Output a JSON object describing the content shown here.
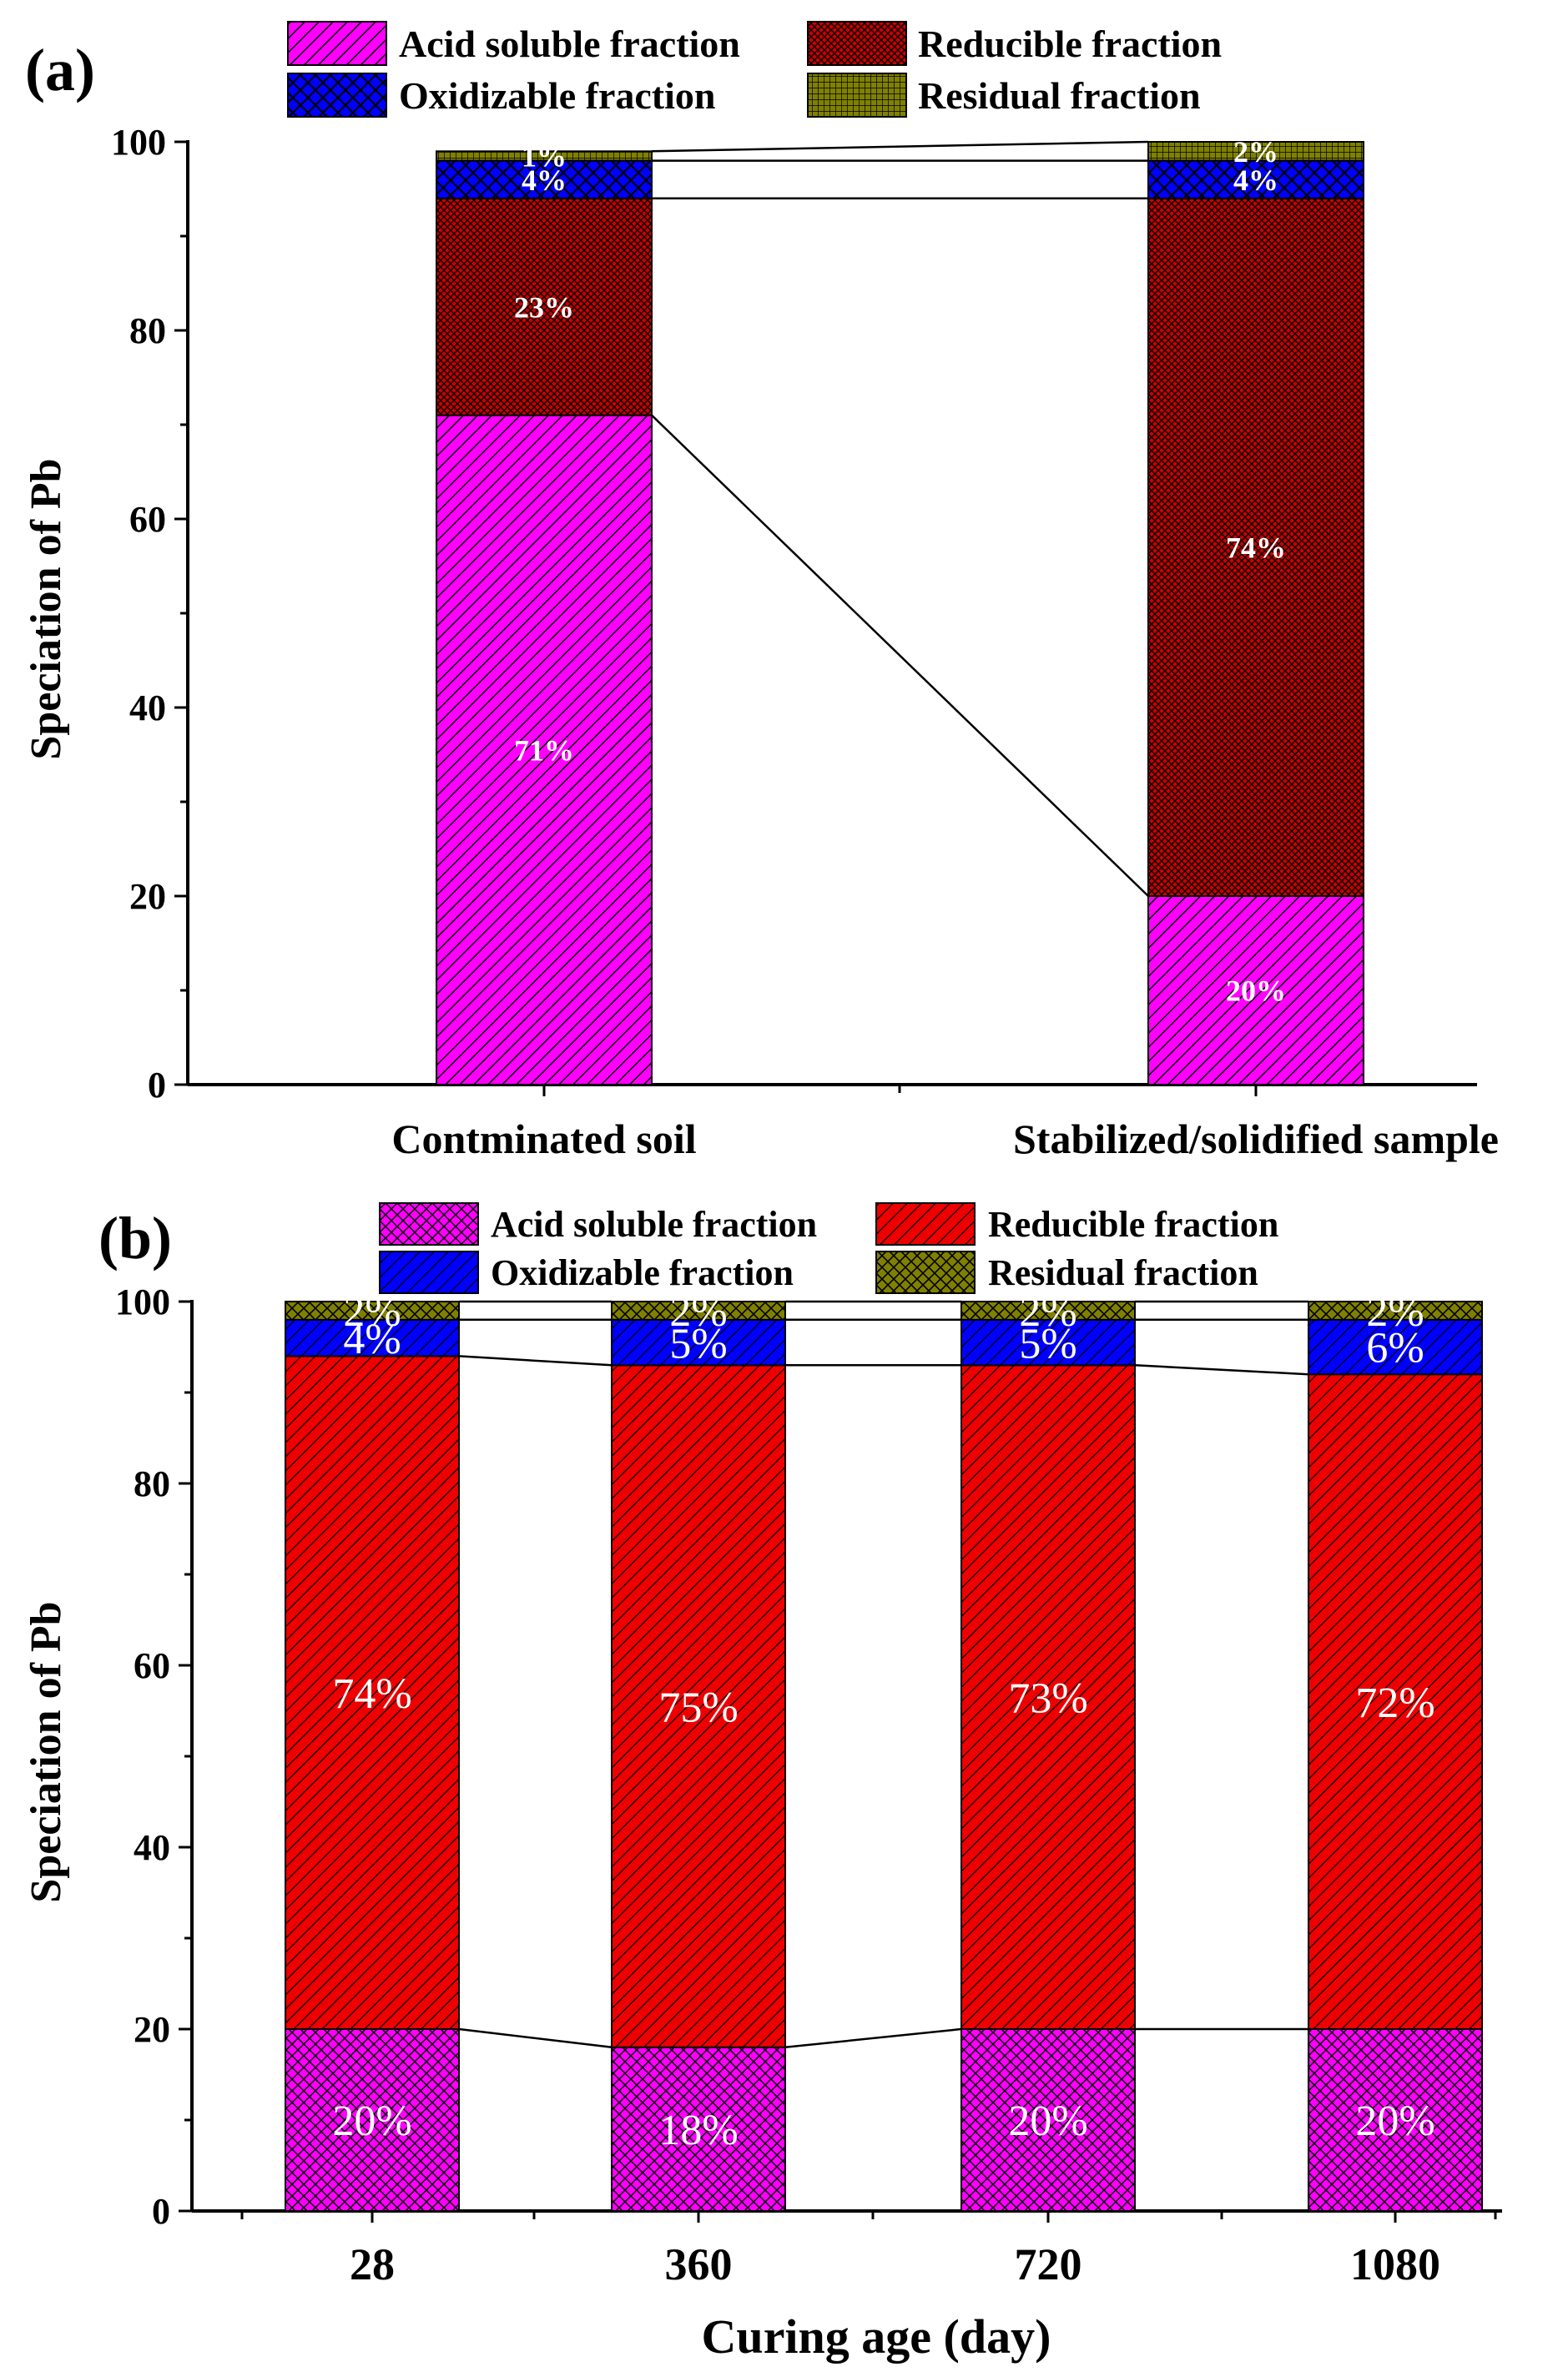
{
  "chart_data": [
    {
      "panel_label": "(a)",
      "type": "bar",
      "stacked": true,
      "title": "",
      "xlabel": "",
      "ylabel": "Speciation of Pb",
      "ylim": [
        0,
        100
      ],
      "yticks": [
        0,
        20,
        40,
        60,
        80,
        100
      ],
      "categories": [
        "Contminated soil",
        "Stabilized/solidified sample"
      ],
      "series": [
        {
          "name": "Acid soluble fraction",
          "values": [
            71,
            20
          ],
          "labels": [
            "71%",
            "20%"
          ],
          "color": "#ff00ff",
          "pattern": "diagonal-hatch"
        },
        {
          "name": "Reducible fraction",
          "values": [
            23,
            74
          ],
          "labels": [
            "23%",
            "74%"
          ],
          "color": "#cc0000",
          "pattern": "fine-crosshatch"
        },
        {
          "name": "Oxidizable fraction",
          "values": [
            4,
            4
          ],
          "labels": [
            "4%",
            "4%"
          ],
          "color": "#0000ff",
          "pattern": "diamond-crosshatch"
        },
        {
          "name": "Residual fraction",
          "values": [
            1,
            2
          ],
          "labels": [
            "1%",
            "2%"
          ],
          "color": "#808000",
          "pattern": "grid"
        }
      ]
    },
    {
      "panel_label": "(b)",
      "type": "bar",
      "stacked": true,
      "title": "",
      "xlabel": "Curing age (day)",
      "ylabel": "Speciation of Pb",
      "ylim": [
        0,
        100
      ],
      "yticks": [
        0,
        20,
        40,
        60,
        80,
        100
      ],
      "categories": [
        "28",
        "360",
        "720",
        "1080"
      ],
      "series": [
        {
          "name": "Acid soluble fraction",
          "values": [
            20,
            18,
            20,
            20
          ],
          "labels": [
            "20%",
            "18%",
            "20%",
            "20%"
          ],
          "color": "#ff00ff",
          "pattern": "diamond-crosshatch"
        },
        {
          "name": "Reducible fraction",
          "values": [
            74,
            75,
            73,
            72
          ],
          "labels": [
            "74%",
            "75%",
            "73%",
            "72%"
          ],
          "color": "#ee0000",
          "pattern": "diagonal-hatch"
        },
        {
          "name": "Oxidizable fraction",
          "values": [
            4,
            5,
            5,
            6
          ],
          "labels": [
            "4%",
            "5%",
            "5%",
            "6%"
          ],
          "color": "#0000ff",
          "pattern": "diagonal-hatch"
        },
        {
          "name": "Residual fraction",
          "values": [
            2,
            2,
            2,
            2
          ],
          "labels": [
            "2%",
            "2%",
            "2%",
            "2%"
          ],
          "color": "#808000",
          "pattern": "diamond-crosshatch"
        }
      ]
    }
  ]
}
